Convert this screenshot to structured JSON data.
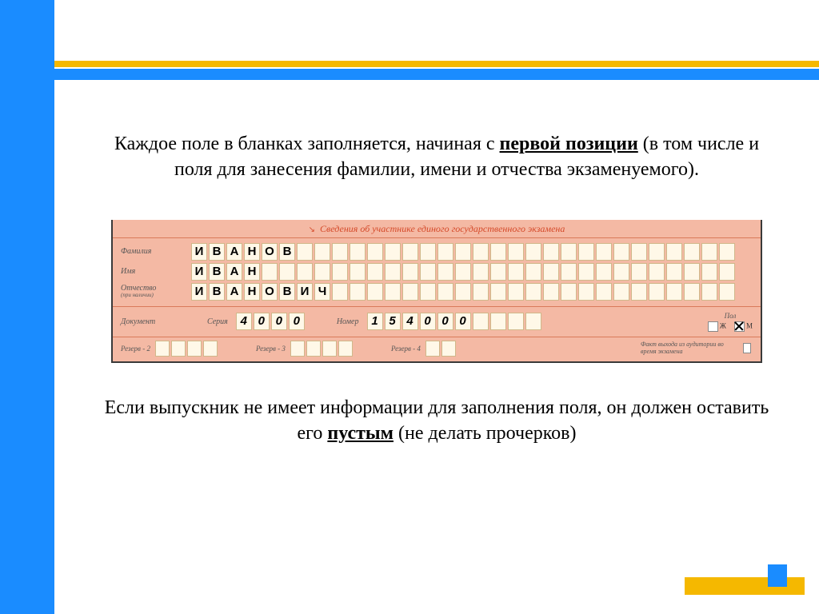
{
  "colors": {
    "blue": "#1a8cff",
    "yellow": "#f5b800",
    "form_bg": "#f4b9a4",
    "header_text": "#d54a2a",
    "cell_bg": "#fff8e8",
    "cell_border": "#d0b88a"
  },
  "para1": {
    "t1": "Каждое поле в бланках заполняется, начиная с ",
    "u1": "первой позиции",
    "t2": " (в том числе и поля для занесения фамилии, имени и отчества экзаменуемого)."
  },
  "form": {
    "header_arrow": "↘",
    "header": "Сведения об участнике единого государственного экзамена",
    "name_cells": 31,
    "rows": {
      "surname": {
        "label": "Фамилия",
        "value": "ИВАНОВ"
      },
      "name": {
        "label": "Имя",
        "value": "ИВАН"
      },
      "patr": {
        "label": "Отчество",
        "sub": "(при наличии)",
        "value": "ИВАНОВИЧ"
      }
    },
    "doc": {
      "label": "Документ",
      "series_label": "Серия",
      "series": "4000",
      "series_cells": 4,
      "number_label": "Номер",
      "number": "154000",
      "number_cells": 10
    },
    "pol": {
      "title": "Пол",
      "f_label": "Ж",
      "f_checked": false,
      "m_label": "М",
      "m_checked": true
    },
    "reserve": {
      "r2_label": "Резерв - 2",
      "r2_cells": 4,
      "r3_label": "Резерв - 3",
      "r3_cells": 4,
      "r4_label": "Резерв - 4",
      "r4_cells": 2,
      "fact_label": "Факт выхода из аудитории во время экзамена"
    }
  },
  "para2": {
    "t1": "Если выпускник не имеет информации для заполнения поля, он должен оставить его ",
    "u1": "пустым",
    "t2": " (не делать прочерков)"
  }
}
